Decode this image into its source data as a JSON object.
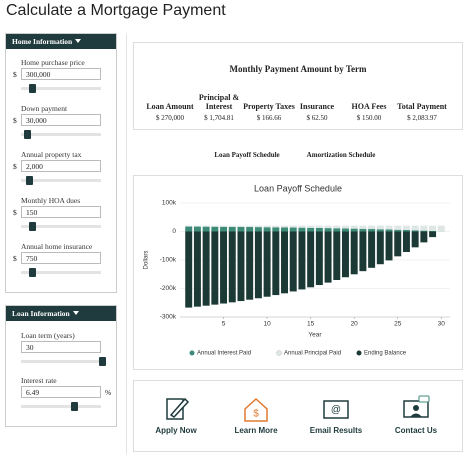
{
  "page_title": "Calculate a Mortgage Payment",
  "home_information": {
    "header": "Home Information",
    "fields": [
      {
        "label": "Home purchase price",
        "prefix": "$",
        "value": "300,000"
      },
      {
        "label": "Down payment",
        "prefix": "$",
        "value": "30,000"
      },
      {
        "label": "Annual property tax",
        "prefix": "$",
        "value": "2,000"
      },
      {
        "label": "Monthly HOA dues",
        "prefix": "$",
        "value": "150"
      },
      {
        "label": "Annual home insurance",
        "prefix": "$",
        "value": "750"
      }
    ]
  },
  "loan_information": {
    "header": "Loan Information",
    "fields": [
      {
        "label": "Loan term (years)",
        "value": "30"
      },
      {
        "label": "Interest rate",
        "value": "6.49",
        "suffix": "%"
      }
    ]
  },
  "payment_summary": {
    "title": "Monthly Payment Amount by Term",
    "columns": [
      {
        "label": "Loan Amount",
        "value": "$ 270,000"
      },
      {
        "label": "Principal & Interest",
        "value": "$ 1,704.81"
      },
      {
        "label": "Property Taxes",
        "value": "$ 166.66"
      },
      {
        "label": "Insurance",
        "value": "$ 62.50"
      },
      {
        "label": "HOA Fees",
        "value": "$ 150.00"
      },
      {
        "label": "Total Payment",
        "value": "$ 2,083.97"
      }
    ]
  },
  "tabs": [
    "Loan Payoff Schedule",
    "Amortization Schedule"
  ],
  "chart_data": {
    "type": "bar",
    "title": "Loan Payoff Schedule",
    "x_label": "Year",
    "y_label": "Dollars",
    "x": [
      1,
      2,
      3,
      4,
      5,
      6,
      7,
      8,
      9,
      10,
      11,
      12,
      13,
      14,
      15,
      16,
      17,
      18,
      19,
      20,
      21,
      22,
      23,
      24,
      25,
      26,
      27,
      28,
      29,
      30
    ],
    "xlim": [
      0,
      31
    ],
    "xticks": [
      5,
      10,
      15,
      20,
      25,
      30
    ],
    "ylim": [
      -300000,
      100000
    ],
    "yticks": [
      {
        "value": 100000,
        "label": "100k"
      },
      0,
      {
        "value": -100000,
        "label": "-100k"
      },
      {
        "value": -200000,
        "label": "-200k"
      },
      {
        "value": -300000,
        "label": "-300k"
      }
    ],
    "grid": true,
    "series": [
      {
        "name": "Annual Interest Paid",
        "color": "#3e8a78",
        "values": [
          17434,
          17232,
          17016,
          16786,
          16540,
          16278,
          15998,
          15700,
          15382,
          15043,
          14680,
          14294,
          13882,
          13442,
          12973,
          12473,
          11939,
          11369,
          10761,
          10113,
          9421,
          8683,
          7896,
          7056,
          6159,
          5203,
          4183,
          3095,
          1934,
          775
        ]
      },
      {
        "name": "Annual Principal Paid",
        "color": "#dfe7e4",
        "values": [
          3024,
          3226,
          3442,
          3672,
          3918,
          4180,
          4460,
          4758,
          5076,
          5415,
          5778,
          6164,
          6576,
          7016,
          7485,
          7985,
          8519,
          9089,
          9697,
          10345,
          11037,
          11775,
          12562,
          13402,
          14299,
          15255,
          16275,
          17363,
          18524,
          19683
        ]
      },
      {
        "name": "Ending Balance",
        "color": "#1c3a35",
        "values": [
          -266976,
          -263750,
          -260308,
          -256636,
          -252718,
          -248538,
          -244078,
          -239320,
          -234244,
          -228829,
          -223051,
          -216887,
          -210311,
          -203295,
          -195810,
          -187825,
          -179306,
          -170217,
          -160520,
          -150175,
          -139138,
          -127363,
          -114801,
          -101399,
          -87100,
          -71845,
          -55570,
          -38207,
          -19683,
          0
        ]
      }
    ]
  },
  "actions": [
    "Apply Now",
    "Learn More",
    "Email Results",
    "Contact Us"
  ]
}
